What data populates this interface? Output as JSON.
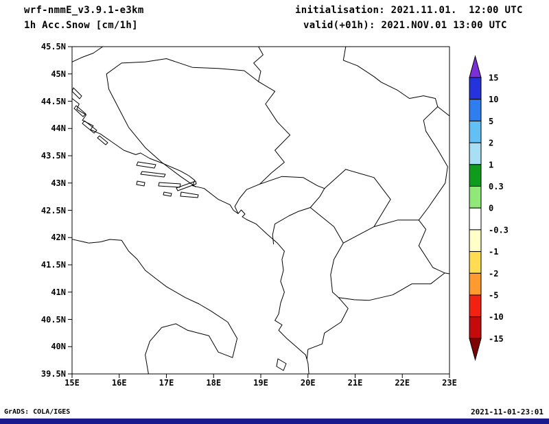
{
  "header": {
    "model": "wrf-nmmE_v3.9.1-e3km",
    "field": "1h Acc.Snow [cm/1h]",
    "initialisation": "initialisation: 2021.11.01.  12:00 UTC",
    "valid": "valid(+01h): 2021.NOV.01 13:00 UTC"
  },
  "map": {
    "y_tick_labels": [
      "45.5N",
      "45N",
      "44.5N",
      "44N",
      "43.5N",
      "43N",
      "42.5N",
      "42N",
      "41.5N",
      "41N",
      "40.5N",
      "40N",
      "39.5N"
    ],
    "x_tick_labels": [
      "15E",
      "16E",
      "17E",
      "18E",
      "19E",
      "20E",
      "21E",
      "22E",
      "23E"
    ]
  },
  "colorbar": {
    "labels": [
      "15",
      "10",
      "5",
      "2",
      "1",
      "0.3",
      "0",
      "-0.3",
      "-1",
      "-2",
      "-5",
      "-10",
      "-15"
    ],
    "segment_colors": [
      "#2533dc",
      "#2e7ef0",
      "#63c0f5",
      "#a8dff5",
      "#0f9b1c",
      "#90e878",
      "#ffffff",
      "#ffffc8",
      "#ffdc52",
      "#ff9a2e",
      "#f22212",
      "#c40a0a"
    ],
    "arrow_top_color": "#7b2fd6",
    "arrow_bottom_color": "#7d0404"
  },
  "footer": {
    "left": "GrADS: COLA/IGES",
    "right": "2021-11-01-23:01"
  }
}
